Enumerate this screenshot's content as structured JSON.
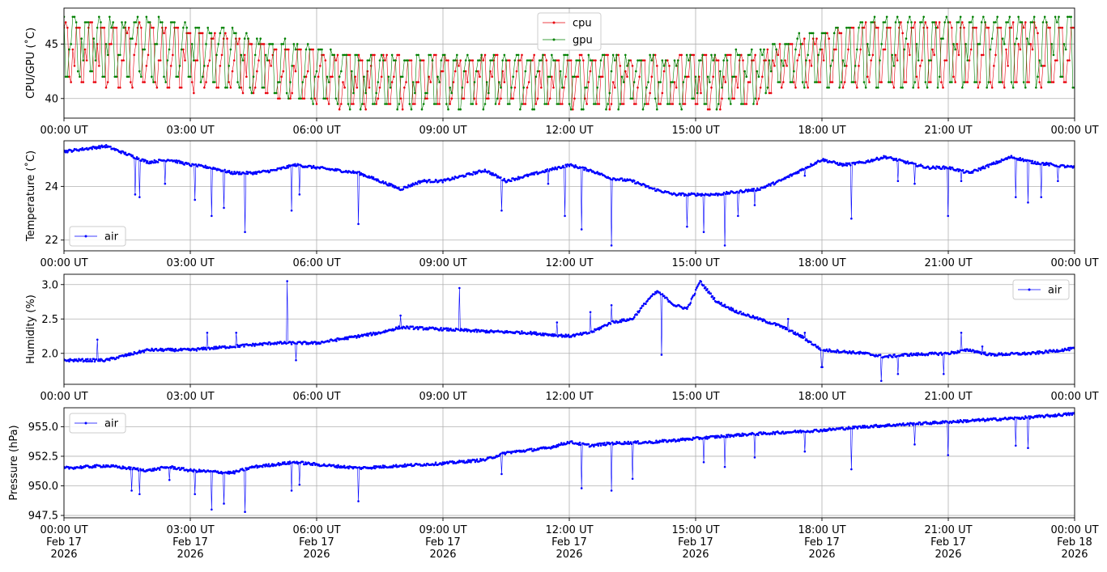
{
  "chart_data": [
    {
      "type": "line",
      "ylabel": "CPU/GPU (˚C)",
      "ylim": [
        38.2,
        48.3
      ],
      "yticks": [
        40,
        45
      ],
      "ytick_labels": [
        "40",
        "45"
      ],
      "xlim": [
        "2026-02-17T00:00",
        "2026-02-18T00:00"
      ],
      "xtick_labels": [
        "00:00 UT",
        "03:00 UT",
        "06:00 UT",
        "09:00 UT",
        "12:00 UT",
        "15:00 UT",
        "18:00 UT",
        "21:00 UT",
        "00:00 UT"
      ],
      "grid": true,
      "legend": "upper center",
      "sampling": "every 2.5 minutes, oscillating between the listed band limits",
      "band_hours": [
        0,
        2,
        4,
        5,
        7,
        10,
        13,
        15,
        16.5,
        17,
        19,
        21,
        24
      ],
      "series": [
        {
          "name": "cpu",
          "color": "#e8000b",
          "low": [
            41,
            41,
            40.5,
            40,
            39,
            39.5,
            39,
            39,
            39.5,
            41,
            41,
            41,
            41
          ],
          "high": [
            47,
            47,
            46,
            45,
            44,
            44,
            44,
            44,
            44,
            45,
            47,
            47,
            47
          ]
        },
        {
          "name": "gpu",
          "color": "#008000",
          "low": [
            41.5,
            41.5,
            41,
            40,
            39,
            39,
            39,
            39,
            39.5,
            41,
            41,
            41,
            41
          ],
          "high": [
            47.5,
            47.5,
            46.5,
            45.5,
            44,
            44,
            44,
            44,
            44.5,
            45.5,
            47.5,
            47.5,
            47.5
          ]
        }
      ]
    },
    {
      "type": "line",
      "ylabel": "Temperature (˚C)",
      "ylim": [
        21.6,
        25.7
      ],
      "yticks": [
        22,
        24
      ],
      "ytick_labels": [
        "22",
        "24"
      ],
      "xtick_labels": [
        "00:00 UT",
        "03:00 UT",
        "06:00 UT",
        "09:00 UT",
        "12:00 UT",
        "15:00 UT",
        "18:00 UT",
        "21:00 UT",
        "00:00 UT"
      ],
      "grid": true,
      "legend": "lower left",
      "series": [
        {
          "name": "air",
          "color": "#0000ff",
          "hours": [
            0,
            0.5,
            1,
            1.5,
            2,
            2.5,
            3,
            3.5,
            4,
            4.5,
            5,
            5.5,
            6,
            6.5,
            7,
            7.5,
            8,
            8.5,
            9,
            9.5,
            10,
            10.5,
            11,
            11.5,
            12,
            12.5,
            13,
            13.5,
            14,
            14.5,
            15,
            15.5,
            16,
            16.5,
            17,
            17.5,
            18,
            18.5,
            19,
            19.5,
            20,
            20.5,
            21,
            21.5,
            22,
            22.5,
            23,
            23.5,
            24
          ],
          "values": [
            25.3,
            25.4,
            25.5,
            25.2,
            24.9,
            25.0,
            24.8,
            24.7,
            24.5,
            24.5,
            24.6,
            24.8,
            24.7,
            24.6,
            24.5,
            24.2,
            23.9,
            24.2,
            24.2,
            24.4,
            24.6,
            24.2,
            24.4,
            24.6,
            24.8,
            24.6,
            24.3,
            24.2,
            23.9,
            23.7,
            23.7,
            23.7,
            23.8,
            23.9,
            24.2,
            24.6,
            25.0,
            24.8,
            24.9,
            25.1,
            24.9,
            24.7,
            24.7,
            24.5,
            24.8,
            25.1,
            24.9,
            24.8,
            24.7
          ],
          "dips": [
            [
              1.7,
              23.7
            ],
            [
              1.8,
              23.6
            ],
            [
              2.4,
              24.1
            ],
            [
              3.1,
              23.5
            ],
            [
              3.5,
              22.9
            ],
            [
              3.8,
              23.2
            ],
            [
              4.3,
              22.3
            ],
            [
              5.4,
              23.1
            ],
            [
              5.6,
              23.7
            ],
            [
              7.0,
              22.6
            ],
            [
              10.4,
              23.1
            ],
            [
              11.5,
              24.1
            ],
            [
              11.9,
              22.9
            ],
            [
              12.3,
              22.4
            ],
            [
              13.0,
              21.8
            ],
            [
              14.8,
              22.5
            ],
            [
              15.2,
              22.3
            ],
            [
              15.7,
              21.8
            ],
            [
              16.0,
              22.9
            ],
            [
              16.4,
              23.3
            ],
            [
              17.6,
              24.4
            ],
            [
              18.7,
              22.8
            ],
            [
              19.8,
              24.2
            ],
            [
              20.2,
              24.1
            ],
            [
              21.0,
              22.9
            ],
            [
              21.3,
              24.2
            ],
            [
              22.6,
              23.6
            ],
            [
              22.9,
              23.4
            ],
            [
              23.2,
              23.6
            ],
            [
              23.6,
              24.2
            ]
          ]
        }
      ]
    },
    {
      "type": "line",
      "ylabel": "Humidity (%)",
      "ylim": [
        1.55,
        3.15
      ],
      "yticks": [
        2.0,
        2.5,
        3.0
      ],
      "ytick_labels": [
        "2.0",
        "2.5",
        "3.0"
      ],
      "xtick_labels": [
        "00:00 UT",
        "03:00 UT",
        "06:00 UT",
        "09:00 UT",
        "12:00 UT",
        "15:00 UT",
        "18:00 UT",
        "21:00 UT",
        "00:00 UT"
      ],
      "grid": true,
      "legend": "upper right",
      "series": [
        {
          "name": "air",
          "color": "#0000ff",
          "hours": [
            0,
            1,
            2,
            3,
            4,
            5,
            6,
            7,
            7.5,
            8,
            9,
            10,
            11,
            12,
            12.5,
            13,
            13.5,
            13.9,
            14.1,
            14.5,
            14.8,
            15.0,
            15.1,
            15.5,
            16,
            17,
            17.5,
            18,
            19,
            19.5,
            20,
            21,
            21.5,
            22,
            23,
            24
          ],
          "values": [
            1.9,
            1.9,
            2.05,
            2.05,
            2.1,
            2.15,
            2.15,
            2.25,
            2.3,
            2.38,
            2.35,
            2.32,
            2.3,
            2.25,
            2.3,
            2.45,
            2.5,
            2.8,
            2.9,
            2.7,
            2.65,
            2.9,
            3.05,
            2.75,
            2.6,
            2.4,
            2.25,
            2.05,
            2.0,
            1.95,
            1.98,
            2.0,
            2.05,
            1.98,
            2.0,
            2.07
          ],
          "spikes": [
            [
              0.8,
              2.2
            ],
            [
              3.4,
              2.3
            ],
            [
              4.1,
              2.3
            ],
            [
              5.3,
              3.05
            ],
            [
              5.5,
              1.9
            ],
            [
              8.0,
              2.55
            ],
            [
              9.4,
              2.95
            ],
            [
              11.7,
              2.45
            ],
            [
              12.5,
              2.6
            ],
            [
              13.0,
              2.7
            ],
            [
              14.2,
              1.98
            ],
            [
              17.2,
              2.5
            ],
            [
              17.6,
              2.3
            ],
            [
              18.0,
              1.8
            ],
            [
              19.4,
              1.6
            ],
            [
              19.8,
              1.7
            ],
            [
              20.9,
              1.7
            ],
            [
              21.3,
              2.3
            ],
            [
              21.8,
              2.1
            ]
          ]
        }
      ]
    },
    {
      "type": "line",
      "ylabel": "Pressure (hPa)",
      "ylim": [
        947.3,
        956.6
      ],
      "yticks": [
        947.5,
        950.0,
        952.5,
        955.0
      ],
      "ytick_labels": [
        "947.5",
        "950.0",
        "952.5",
        "955.0"
      ],
      "xtick_labels": [
        "00:00 UT\nFeb 17\n2026",
        "03:00 UT\nFeb 17\n2026",
        "06:00 UT\nFeb 17\n2026",
        "09:00 UT\nFeb 17\n2026",
        "12:00 UT\nFeb 17\n2026",
        "15:00 UT\nFeb 17\n2026",
        "18:00 UT\nFeb 17\n2026",
        "21:00 UT\nFeb 17\n2026",
        "00:00 UT\nFeb 18\n2026"
      ],
      "grid": true,
      "legend": "upper left",
      "series": [
        {
          "name": "air",
          "color": "#0000ff",
          "hours": [
            0,
            1,
            2,
            2.5,
            3,
            4,
            4.5,
            5,
            5.5,
            6,
            7,
            8,
            9,
            10,
            10.5,
            11,
            11.5,
            12,
            12.5,
            13,
            14,
            15,
            16,
            17,
            18,
            19,
            20,
            21,
            22,
            23,
            24
          ],
          "values": [
            951.5,
            951.7,
            951.3,
            951.6,
            951.3,
            951.1,
            951.6,
            951.8,
            952.0,
            951.8,
            951.5,
            951.7,
            951.9,
            952.2,
            952.8,
            953.0,
            953.2,
            953.7,
            953.4,
            953.6,
            953.7,
            954.0,
            954.3,
            954.5,
            954.7,
            955.0,
            955.2,
            955.4,
            955.6,
            955.8,
            956.1
          ],
          "dips": [
            [
              1.6,
              949.6
            ],
            [
              1.8,
              949.3
            ],
            [
              2.5,
              950.5
            ],
            [
              3.1,
              949.3
            ],
            [
              3.5,
              948.0
            ],
            [
              3.8,
              948.5
            ],
            [
              4.3,
              947.8
            ],
            [
              5.4,
              949.6
            ],
            [
              5.6,
              950.1
            ],
            [
              7.0,
              948.7
            ],
            [
              10.4,
              951.0
            ],
            [
              12.3,
              949.8
            ],
            [
              13.0,
              949.6
            ],
            [
              13.5,
              950.6
            ],
            [
              15.2,
              952.0
            ],
            [
              15.7,
              951.6
            ],
            [
              16.4,
              952.4
            ],
            [
              17.6,
              952.9
            ],
            [
              18.7,
              951.4
            ],
            [
              20.2,
              953.5
            ],
            [
              21.0,
              952.6
            ],
            [
              22.6,
              953.4
            ],
            [
              22.9,
              953.2
            ]
          ]
        }
      ]
    }
  ]
}
